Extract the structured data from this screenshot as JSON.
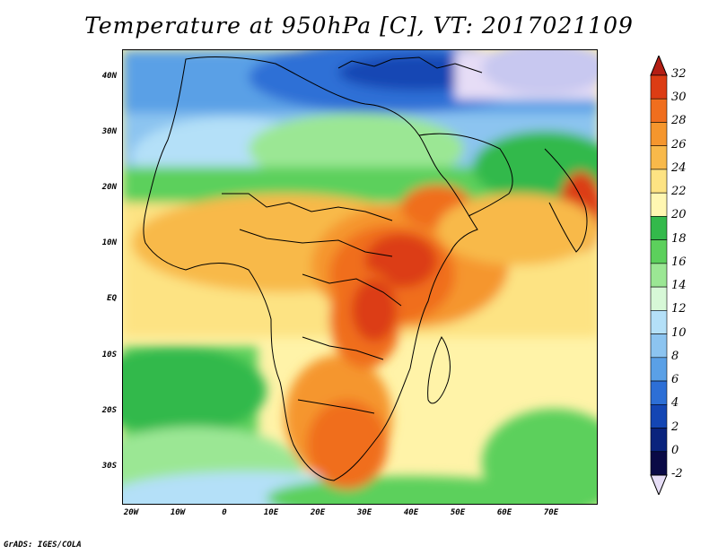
{
  "title": "Temperature at 950hPa [C], VT: 2017021109",
  "credit": "GrADS: IGES/COLA",
  "map": {
    "region": "Africa and Arabian Peninsula",
    "variable": "Temperature",
    "level": "950hPa",
    "units": "C",
    "valid_time": "2017021109",
    "lon_range": [
      -25,
      80
    ],
    "lat_range": [
      -37,
      45
    ],
    "x_ticks": [
      "20W",
      "10W",
      "0",
      "10E",
      "20E",
      "30E",
      "40E",
      "50E",
      "60E",
      "70E"
    ],
    "y_ticks": [
      "40N",
      "30N",
      "20N",
      "10N",
      "EQ",
      "10S",
      "20S",
      "30S"
    ]
  },
  "colorbar": {
    "labels": [
      "32",
      "30",
      "28",
      "26",
      "24",
      "22",
      "20",
      "18",
      "16",
      "14",
      "12",
      "10",
      "8",
      "6",
      "4",
      "2",
      "0",
      "-2"
    ],
    "colors": [
      "#b41e14",
      "#dc3c14",
      "#f06e1e",
      "#f5962d",
      "#f8b94a",
      "#fde383",
      "#fff7b2",
      "#33b94b",
      "#5cd05c",
      "#9be794",
      "#d7f8d7",
      "#b4e0f8",
      "#8cc4f0",
      "#5aa0e6",
      "#2d6fd6",
      "#1446b4",
      "#0a237d",
      "#0a0a46",
      "#e6ddf6"
    ]
  }
}
